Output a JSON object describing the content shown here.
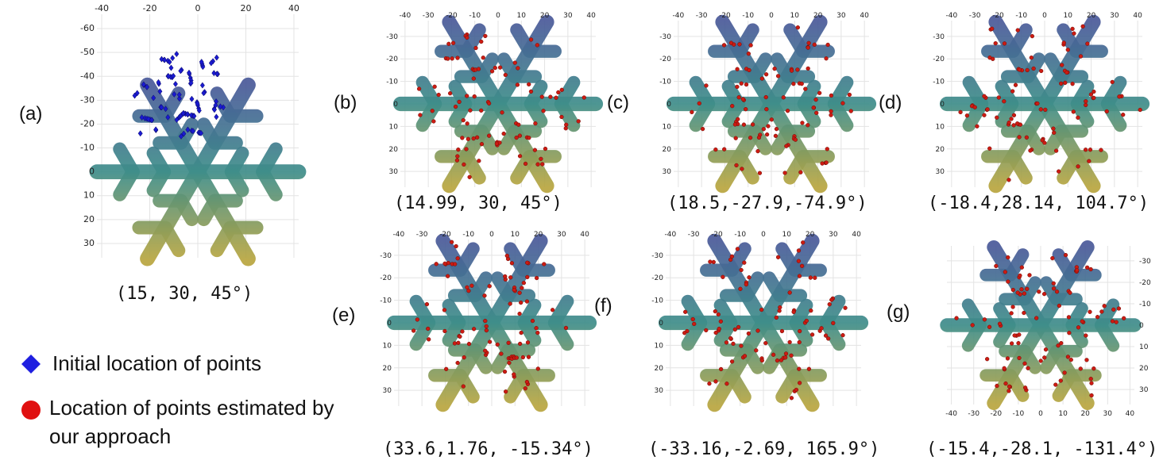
{
  "panels": [
    {
      "id": "a",
      "label": "(a)",
      "caption": "(15, 30, 45°)",
      "xticks": [
        "-40",
        "-20",
        "0",
        "20",
        "40"
      ],
      "yticks": [
        "-60",
        "-50",
        "-40",
        "-30",
        "-20",
        "-10",
        "0",
        "10",
        "20",
        "30"
      ],
      "marker": "diamond",
      "pose": {
        "tx": 15,
        "ty": 30,
        "theta_deg": 45
      }
    },
    {
      "id": "b",
      "label": "(b)",
      "caption": "(14.99, 30, 45°)",
      "xticks": [
        "-40",
        "-30",
        "-20",
        "-10",
        "0",
        "10",
        "20",
        "30",
        "40"
      ],
      "yticks": [
        "-30",
        "-20",
        "-10",
        "0",
        "10",
        "20",
        "30"
      ],
      "marker": "dot",
      "pose": {
        "tx": 14.99,
        "ty": 30,
        "theta_deg": 45
      }
    },
    {
      "id": "c",
      "label": "(c)",
      "caption": "(18.5,-27.9,-74.9°)",
      "xticks": [
        "-40",
        "-30",
        "-20",
        "-10",
        "0",
        "10",
        "20",
        "30",
        "40"
      ],
      "yticks": [
        "-30",
        "-20",
        "-10",
        "0",
        "10",
        "20",
        "30"
      ],
      "marker": "dot",
      "pose": {
        "tx": 18.5,
        "ty": -27.9,
        "theta_deg": -74.9
      }
    },
    {
      "id": "d",
      "label": "(d)",
      "caption": "(-18.4,28.14, 104.7°)",
      "xticks": [
        "-40",
        "-30",
        "-20",
        "-10",
        "0",
        "10",
        "20",
        "30",
        "40"
      ],
      "yticks": [
        "-30",
        "-20",
        "-10",
        "0",
        "10",
        "20",
        "30"
      ],
      "marker": "dot",
      "pose": {
        "tx": -18.4,
        "ty": 28.14,
        "theta_deg": 104.7
      }
    },
    {
      "id": "e",
      "label": "(e)",
      "caption": "(33.6,1.76, -15.34°)",
      "xticks": [
        "-40",
        "-30",
        "-20",
        "-10",
        "0",
        "10",
        "20",
        "30",
        "40"
      ],
      "yticks": [
        "-30",
        "-20",
        "-10",
        "0",
        "10",
        "20",
        "30"
      ],
      "marker": "dot",
      "pose": {
        "tx": 33.6,
        "ty": 1.76,
        "theta_deg": -15.34
      }
    },
    {
      "id": "f",
      "label": "(f)",
      "caption": "(-33.16,-2.69, 165.9°)",
      "xticks": [
        "-40",
        "-30",
        "-20",
        "-10",
        "0",
        "10",
        "20",
        "30",
        "40"
      ],
      "yticks": [
        "-30",
        "-20",
        "-10",
        "0",
        "10",
        "20",
        "30"
      ],
      "marker": "dot",
      "pose": {
        "tx": -33.16,
        "ty": -2.69,
        "theta_deg": 165.9
      }
    },
    {
      "id": "g",
      "label": "(g)",
      "caption": "(-15.4,-28.1, -131.4°)",
      "xticks": [
        "-40",
        "-30",
        "-20",
        "-10",
        "0",
        "10",
        "20",
        "30",
        "40"
      ],
      "yticks": [
        "-30",
        "-20",
        "-10",
        "0",
        "10",
        "20",
        "30"
      ],
      "marker": "dot",
      "pose": {
        "tx": -15.4,
        "ty": -28.1,
        "theta_deg": -131.4
      }
    }
  ],
  "legend": {
    "initial": {
      "label": "Initial location of points",
      "color": "#1f1fe0",
      "shape": "diamond"
    },
    "estimated": {
      "label_line1": "Location of points estimated by",
      "label_line2": "our approach",
      "color": "#e01010",
      "shape": "circle"
    }
  },
  "colors": {
    "shape_top": "#4a5a9a",
    "shape_mid": "#3f8e8a",
    "shape_bottom": "#b9a640",
    "dot": "#cc1b12",
    "diamond": "#1a1ad0"
  }
}
